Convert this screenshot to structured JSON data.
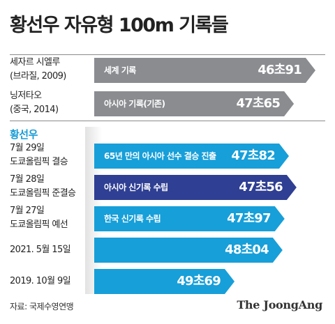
{
  "title": "황선우 자유형 100m 기록들",
  "source": "자료: 국제수영연맹",
  "logo": "The JoongAng",
  "section_title": "황선우",
  "colors": {
    "gray": "#8a8c90",
    "cyan": "#179fd9",
    "navy": "#2f3f93",
    "section": "#1a9cd6"
  },
  "chart_data": {
    "type": "bar",
    "orientation": "horizontal",
    "title": "황선우 자유형 100m 기록들",
    "value_unit": "seconds",
    "rows": [
      {
        "label1": "세자르 시엘루",
        "label2": "(브라질, 2009)",
        "value": 46.91,
        "value_label": "46초91",
        "desc": "세계 기록",
        "color": "gray"
      },
      {
        "label1": "닝저타오",
        "label2": "(중국, 2014)",
        "value": 47.65,
        "value_label": "47초65",
        "desc": "아시아 기록(기존)",
        "color": "gray"
      },
      {
        "label1": "7월 29일",
        "label2": "도쿄올림픽 결승",
        "value": 47.82,
        "value_label": "47초82",
        "desc": "65년 만의 아시아 선수 결승 진출",
        "color": "cyan"
      },
      {
        "label1": "7월 28일",
        "label2": "도쿄올림픽 준결승",
        "value": 47.56,
        "value_label": "47초56",
        "desc": "아시아 신기록 수립",
        "color": "navy"
      },
      {
        "label1": "7월 27일",
        "label2": "도쿄올림픽 예선",
        "value": 47.97,
        "value_label": "47초97",
        "desc": "한국 신기록 수립",
        "color": "cyan"
      },
      {
        "label1": "2021. 5월 15일",
        "label2": "",
        "value": 48.04,
        "value_label": "48초04",
        "desc": "",
        "color": "cyan"
      },
      {
        "label1": "2019. 10월 9일",
        "label2": "",
        "value": 49.69,
        "value_label": "49초69",
        "desc": "",
        "color": "cyan"
      }
    ]
  }
}
